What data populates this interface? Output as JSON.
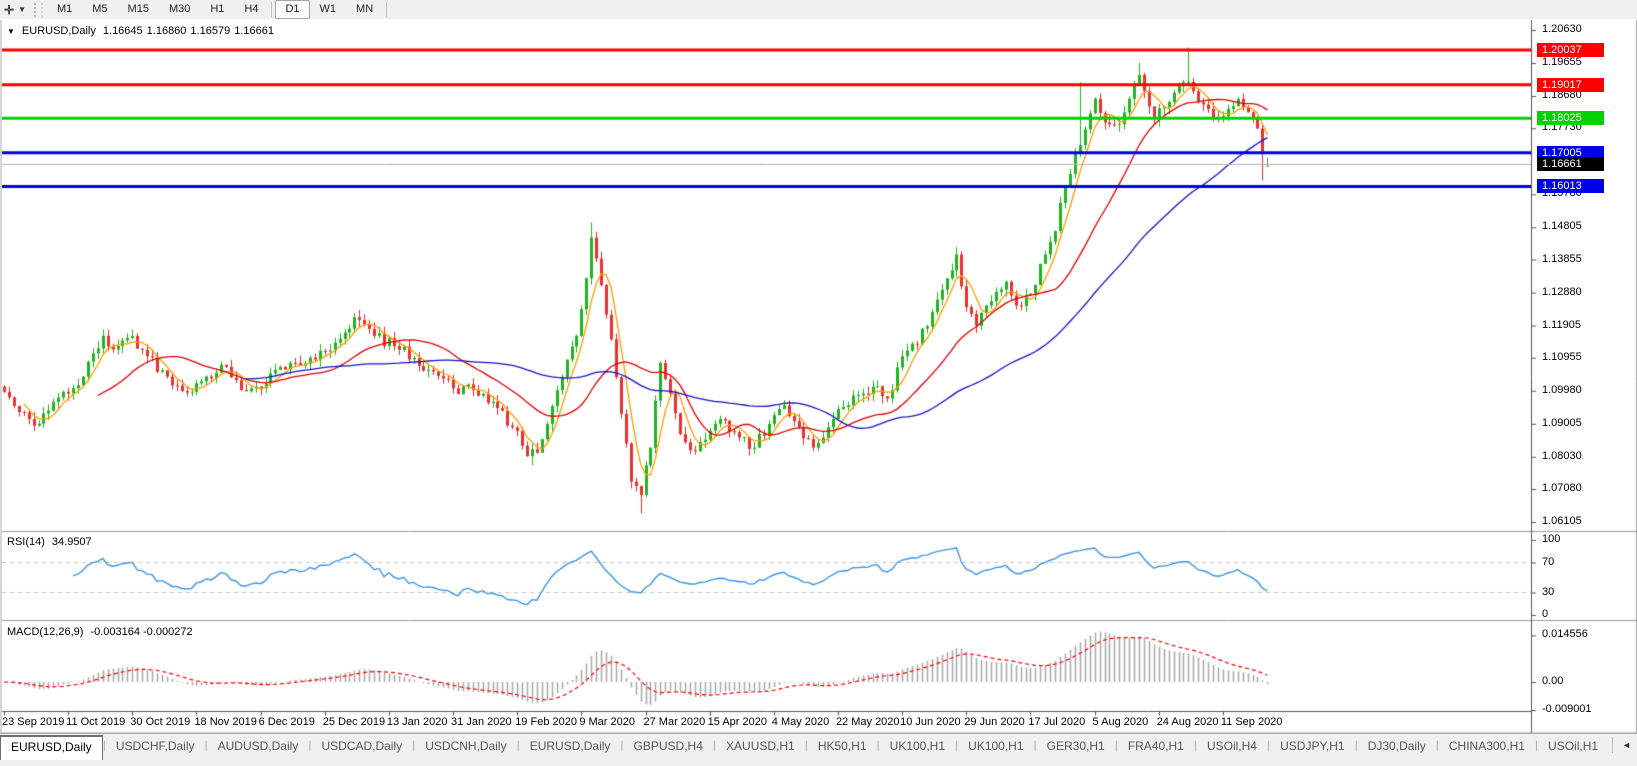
{
  "toolbar": {
    "crosshair_icon": "✛",
    "dropdown_caret": "▼",
    "timeframes": [
      "M1",
      "M5",
      "M15",
      "M30",
      "H1",
      "H4",
      "D1",
      "W1",
      "MN"
    ],
    "active_timeframe": "D1"
  },
  "chart": {
    "title": {
      "dropdown": "▼",
      "symbol": "EURUSD,Daily",
      "open": "1.16645",
      "high": "1.16860",
      "low": "1.16579",
      "close": "1.16661"
    },
    "price_axis_ticks": [
      "1.20630",
      "1.19655",
      "1.18680",
      "1.17730",
      "1.15780",
      "1.14805",
      "1.13855",
      "1.12880",
      "1.11905",
      "1.10955",
      "1.09980",
      "1.09005",
      "1.08030",
      "1.07080",
      "1.06105"
    ],
    "date_axis_ticks": [
      "23 Sep 2019",
      "11 Oct 2019",
      "30 Oct 2019",
      "18 Nov 2019",
      "6 Dec 2019",
      "25 Dec 2019",
      "13 Jan 2020",
      "31 Jan 2020",
      "19 Feb 2020",
      "9 Mar 2020",
      "27 Mar 2020",
      "15 Apr 2020",
      "4 May 2020",
      "22 May 2020",
      "10 Jun 2020",
      "29 Jun 2020",
      "17 Jul 2020",
      "5 Aug 2020",
      "24 Aug 2020",
      "11 Sep 2020"
    ],
    "current_price_label": "1.16661"
  },
  "rsi_panel": {
    "label": "RSI(14)",
    "value": "34.9507",
    "axis_ticks": [
      [
        "100",
        100
      ],
      [
        "70",
        70
      ],
      [
        "30",
        30
      ],
      [
        "0",
        0
      ]
    ]
  },
  "macd_panel": {
    "label": "MACD(12,26,9)",
    "values": "-0.003164 -0.000272",
    "axis_ticks": [
      [
        "0.014556",
        0.014556
      ],
      [
        "0.00",
        0
      ],
      [
        "-0.009001",
        -0.009001
      ]
    ]
  },
  "tab_bar": {
    "tabs": [
      "EURUSD,Daily",
      "USDCHF,Daily",
      "AUDUSD,Daily",
      "USDCAD,Daily",
      "USDCNH,Daily",
      "EURUSD,Daily",
      "GBPUSD,H4",
      "XAUUSD,H1",
      "HK50,H1",
      "UK100,H1",
      "UK100,H1",
      "GER30,H1",
      "FRA40,H1",
      "USOil,H4",
      "USDJPY,H1",
      "DJ30,Daily",
      "CHINA300,H1",
      "USOil,H1"
    ],
    "active_index": 0,
    "scroll_left": "◄",
    "scroll_right": "►"
  },
  "chart_data": {
    "type": "candlestick",
    "symbol": "EURUSD",
    "timeframe": "Daily",
    "bars": 257,
    "visible_price_range": [
      1.06105,
      1.2063
    ],
    "last_candle": {
      "open": 1.16645,
      "high": 1.1686,
      "low": 1.16579,
      "close": 1.16661
    },
    "close_anchors": [
      [
        0,
        1.0995
      ],
      [
        3,
        1.0935
      ],
      [
        6,
        1.0895
      ],
      [
        10,
        1.0965
      ],
      [
        13,
        1.099
      ],
      [
        16,
        1.104
      ],
      [
        20,
        1.116
      ],
      [
        22,
        1.112
      ],
      [
        26,
        1.116
      ],
      [
        29,
        1.11
      ],
      [
        33,
        1.104
      ],
      [
        38,
        1.0995
      ],
      [
        41,
        1.104
      ],
      [
        44,
        1.1075
      ],
      [
        48,
        1.1
      ],
      [
        51,
        1.101
      ],
      [
        55,
        1.106
      ],
      [
        59,
        1.108
      ],
      [
        63,
        1.109
      ],
      [
        67,
        1.114
      ],
      [
        71,
        1.1215
      ],
      [
        75,
        1.116
      ],
      [
        79,
        1.113
      ],
      [
        83,
        1.1095
      ],
      [
        87,
        1.1055
      ],
      [
        91,
        1.1005
      ],
      [
        95,
        1.1
      ],
      [
        99,
        1.0965
      ],
      [
        103,
        1.089
      ],
      [
        106,
        1.0805
      ],
      [
        108,
        1.0815
      ],
      [
        110,
        1.09
      ],
      [
        112,
        1.1
      ],
      [
        114,
        1.109
      ],
      [
        116,
        1.116
      ],
      [
        118,
        1.133
      ],
      [
        119,
        1.145
      ],
      [
        121,
        1.131
      ],
      [
        123,
        1.115
      ],
      [
        125,
        1.093
      ],
      [
        127,
        1.073
      ],
      [
        129,
        1.069
      ],
      [
        131,
        1.083
      ],
      [
        133,
        1.108
      ],
      [
        135,
        1.099
      ],
      [
        137,
        1.087
      ],
      [
        140,
        1.082
      ],
      [
        143,
        1.088
      ],
      [
        146,
        1.091
      ],
      [
        149,
        1.086
      ],
      [
        152,
        1.083
      ],
      [
        155,
        1.09
      ],
      [
        158,
        1.0955
      ],
      [
        161,
        1.089
      ],
      [
        164,
        1.083
      ],
      [
        167,
        1.089
      ],
      [
        170,
        1.095
      ],
      [
        173,
        1.0985
      ],
      [
        176,
        1.101
      ],
      [
        179,
        1.0975
      ],
      [
        182,
        1.11
      ],
      [
        185,
        1.1135
      ],
      [
        188,
        1.123
      ],
      [
        191,
        1.133
      ],
      [
        193,
        1.14
      ],
      [
        195,
        1.1245
      ],
      [
        197,
        1.119
      ],
      [
        199,
        1.125
      ],
      [
        201,
        1.129
      ],
      [
        203,
        1.132
      ],
      [
        205,
        1.125
      ],
      [
        207,
        1.128
      ],
      [
        209,
        1.131
      ],
      [
        211,
        1.14
      ],
      [
        213,
        1.147
      ],
      [
        215,
        1.16
      ],
      [
        217,
        1.17
      ],
      [
        219,
        1.177
      ],
      [
        221,
        1.186
      ],
      [
        223,
        1.179
      ],
      [
        226,
        1.1785
      ],
      [
        228,
        1.186
      ],
      [
        230,
        1.193
      ],
      [
        233,
        1.18
      ],
      [
        235,
        1.1835
      ],
      [
        238,
        1.19
      ],
      [
        240,
        1.191
      ],
      [
        242,
        1.185
      ],
      [
        244,
        1.183
      ],
      [
        246,
        1.18
      ],
      [
        248,
        1.183
      ],
      [
        250,
        1.186
      ],
      [
        252,
        1.182
      ],
      [
        254,
        1.1772
      ],
      [
        255,
        1.1705
      ],
      [
        256,
        1.16661
      ]
    ],
    "wick_overrides": {
      "6": {
        "low": 1.0879
      },
      "20": {
        "high": 1.1179
      },
      "107": {
        "low": 1.0778
      },
      "119": {
        "high": 1.1495
      },
      "129": {
        "low": 1.0636
      },
      "193": {
        "high": 1.1422
      },
      "218": {
        "high": 1.1909
      },
      "230": {
        "high": 1.1966
      },
      "240": {
        "high": 1.2011
      },
      "255": {
        "low": 1.1618
      },
      "256": {
        "open": 1.16645,
        "high": 1.1686,
        "low": 1.16579,
        "close": 1.16661
      }
    },
    "moving_averages": [
      {
        "period": 5,
        "color": "#ff9c00"
      },
      {
        "period": 20,
        "color": "#e00000"
      },
      {
        "period": 50,
        "color": "#1414c8"
      }
    ],
    "horizontal_lines": [
      {
        "price": 1.20037,
        "label": "1.20037",
        "color": "#fe0000",
        "width": 3
      },
      {
        "price": 1.19017,
        "label": "1.19017",
        "color": "#fe0000",
        "width": 3
      },
      {
        "price": 1.18025,
        "label": "1.18025",
        "color": "#00d200",
        "width": 3
      },
      {
        "price": 1.17005,
        "label": "1.17005",
        "color": "#0000e6",
        "width": 3
      },
      {
        "price": 1.16013,
        "label": "1.16013",
        "color": "#0000e6",
        "width": 3
      }
    ],
    "current_price": {
      "price": 1.16661,
      "label": "1.16661",
      "line_color": "#b4b4b4",
      "badge_color": "#000000"
    },
    "rsi": {
      "period": 14,
      "current": 34.9507,
      "levels": [
        70,
        30
      ],
      "line_color": "#3c96e6",
      "range": [
        0,
        100
      ]
    },
    "macd": {
      "fast": 12,
      "slow": 26,
      "signal": 9,
      "current_macd": -0.003164,
      "current_signal": -0.000272,
      "histogram_color": "#ababab",
      "signal_color": "#fe0000",
      "axis_max": 0.014556,
      "axis_min": -0.009001
    },
    "candle_colors": {
      "bull": "#1fb31f",
      "bear": "#e83030"
    }
  }
}
